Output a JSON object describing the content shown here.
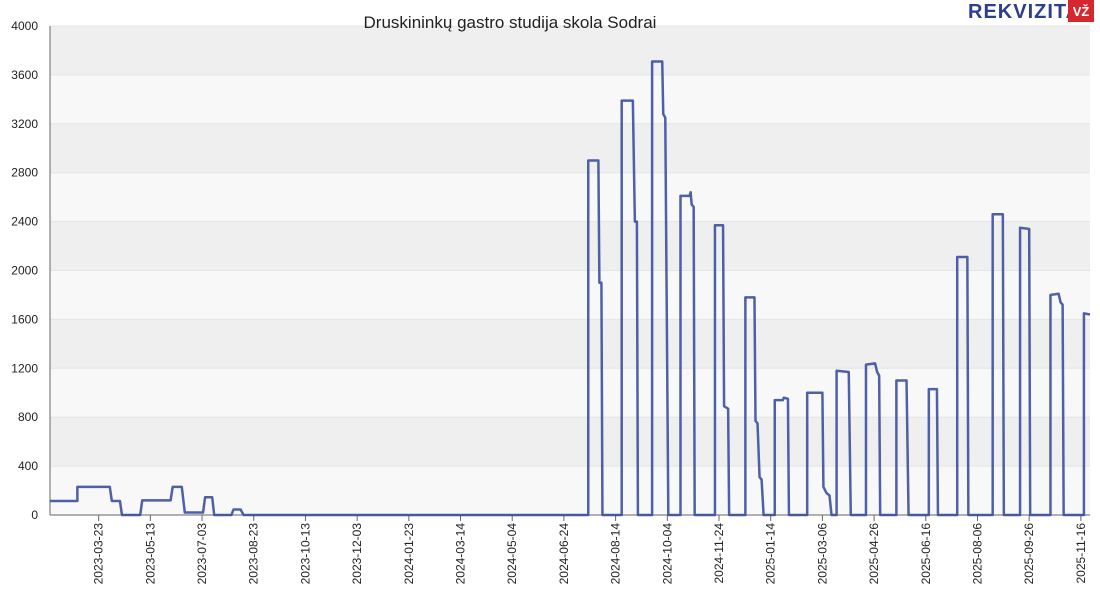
{
  "brand": {
    "name": "REKVIZITAI",
    "badge": "VŽ"
  },
  "chart_data": {
    "type": "line",
    "title": "Druskininkų gastro studija skola Sodrai",
    "color": "#3b4f9d",
    "x": [
      "2023-02-03",
      "2023-03-02",
      "2023-03-02",
      "2023-04-03",
      "2023-04-05",
      "2023-04-13",
      "2023-04-15",
      "2023-05-03",
      "2023-05-05",
      "2023-06-02",
      "2023-06-04",
      "2023-06-13",
      "2023-06-16",
      "2023-07-04",
      "2023-07-06",
      "2023-07-13",
      "2023-07-15",
      "2023-08-01",
      "2023-08-03",
      "2023-08-10",
      "2023-08-13",
      "2024-07-18",
      "2024-07-18",
      "2024-07-28",
      "2024-07-29",
      "2024-07-31",
      "2024-08-01",
      "2024-08-20",
      "2024-08-20",
      "2024-08-31",
      "2024-09-02",
      "2024-09-04",
      "2024-09-05",
      "2024-09-19",
      "2024-09-19",
      "2024-09-29",
      "2024-09-30",
      "2024-10-02",
      "2024-10-05",
      "2024-10-17",
      "2024-10-17",
      "2024-10-26",
      "2024-10-27",
      "2024-10-28",
      "2024-10-30",
      "2024-10-31",
      "2024-11-20",
      "2024-11-20",
      "2024-11-28",
      "2024-11-29",
      "2024-12-03",
      "2024-12-04",
      "2024-12-20",
      "2024-12-20",
      "2024-12-29",
      "2024-12-30",
      "2025-01-01",
      "2025-01-03",
      "2025-01-05",
      "2025-01-07",
      "2025-01-18",
      "2025-01-18",
      "2025-01-26",
      "2025-01-27",
      "2025-01-31",
      "2025-02-01",
      "2025-02-19",
      "2025-02-19",
      "2025-03-06",
      "2025-03-07",
      "2025-03-10",
      "2025-03-13",
      "2025-03-15",
      "2025-03-20",
      "2025-03-20",
      "2025-04-01",
      "2025-04-03",
      "2025-04-18",
      "2025-04-18",
      "2025-04-27",
      "2025-04-29",
      "2025-05-01",
      "2025-05-02",
      "2025-05-18",
      "2025-05-18",
      "2025-05-28",
      "2025-05-30",
      "2025-06-19",
      "2025-06-19",
      "2025-06-27",
      "2025-06-28",
      "2025-07-17",
      "2025-07-17",
      "2025-07-27",
      "2025-07-28",
      "2025-08-21",
      "2025-08-21",
      "2025-08-31",
      "2025-09-01",
      "2025-09-17",
      "2025-09-17",
      "2025-09-26",
      "2025-09-27",
      "2025-10-17",
      "2025-10-17",
      "2025-10-25",
      "2025-10-27",
      "2025-10-29",
      "2025-10-30",
      "2025-11-19",
      "2025-11-19",
      "2025-11-25"
    ],
    "values": [
      115,
      115,
      230,
      230,
      115,
      115,
      0,
      0,
      120,
      120,
      230,
      230,
      20,
      20,
      145,
      145,
      0,
      0,
      45,
      45,
      0,
      0,
      2900,
      2900,
      1900,
      1900,
      0,
      0,
      3390,
      3390,
      2400,
      2400,
      0,
      0,
      3710,
      3710,
      3280,
      3250,
      0,
      0,
      2610,
      2610,
      2640,
      2540,
      2520,
      0,
      0,
      2370,
      2370,
      890,
      870,
      0,
      0,
      1780,
      1780,
      770,
      750,
      310,
      290,
      0,
      0,
      940,
      940,
      960,
      950,
      0,
      0,
      1000,
      1000,
      230,
      180,
      160,
      0,
      0,
      1180,
      1170,
      0,
      0,
      1230,
      1240,
      1170,
      1140,
      0,
      0,
      1100,
      1100,
      0,
      0,
      1030,
      1030,
      0,
      0,
      2110,
      2110,
      0,
      0,
      2460,
      2460,
      0,
      0,
      2350,
      2340,
      0,
      0,
      1800,
      1810,
      1740,
      1720,
      0,
      0,
      1650,
      1640
    ],
    "xlim": [
      "2023-02-03",
      "2025-11-25"
    ],
    "xticks": [
      "2023-03-23",
      "2023-05-13",
      "2023-07-03",
      "2023-08-23",
      "2023-10-13",
      "2023-12-03",
      "2024-01-23",
      "2024-03-14",
      "2024-05-04",
      "2024-06-24",
      "2024-08-14",
      "2024-10-04",
      "2024-11-24",
      "2025-01-14",
      "2025-03-06",
      "2025-04-26",
      "2025-06-16",
      "2025-08-06",
      "2025-09-26",
      "2025-11-16"
    ],
    "ylim": [
      0,
      4000
    ],
    "yticks": [
      0,
      400,
      800,
      1200,
      1600,
      2000,
      2400,
      2800,
      3200,
      3600,
      4000
    ],
    "grid": "bands"
  }
}
